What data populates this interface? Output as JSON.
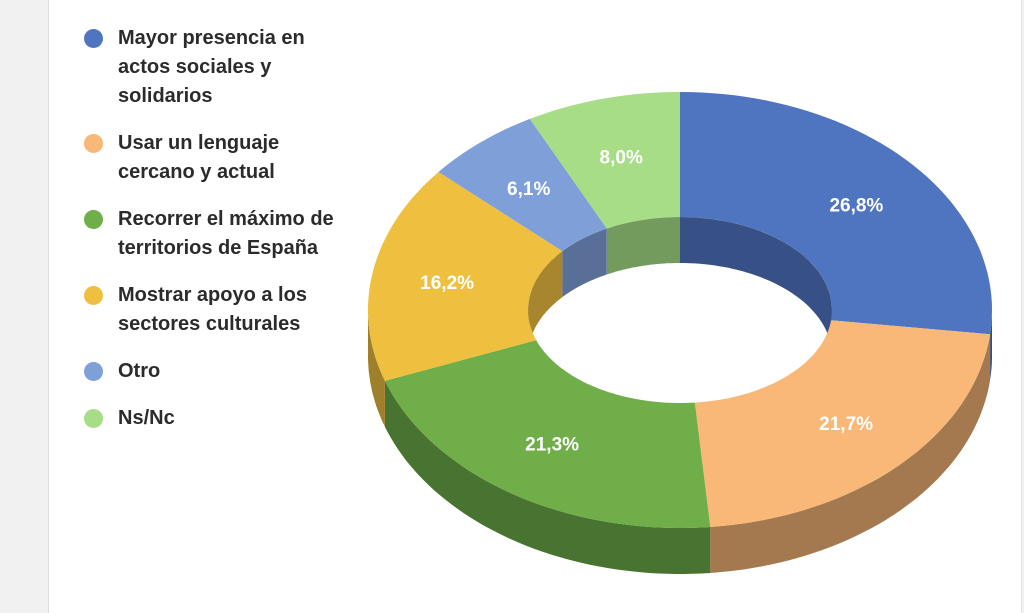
{
  "chart_data": {
    "type": "pie",
    "style": "3d-donut",
    "title": "",
    "categories": [
      "Mayor presencia en actos sociales y solidarios",
      "Usar un lenguaje cercano y actual",
      "Recorrer el máximo de territorios de España",
      "Mostrar apoyo a los sectores culturales",
      "Otro",
      "Ns/Nc"
    ],
    "values": [
      26.8,
      21.7,
      21.3,
      16.2,
      6.1,
      8.0
    ],
    "value_labels": [
      "26,8%",
      "21,7%",
      "21,3%",
      "16,2%",
      "6,1%",
      "8,0%"
    ],
    "colors": [
      "#4f74c0",
      "#f9b877",
      "#6fae48",
      "#efc040",
      "#7f9fd8",
      "#a6dd86"
    ],
    "legend_position": "left"
  },
  "legend": {
    "items": [
      {
        "lines": [
          "Mayor presencia en",
          "actos sociales y",
          "solidarios"
        ]
      },
      {
        "lines": [
          "Usar un lenguaje",
          "cercano y actual"
        ]
      },
      {
        "lines": [
          "Recorrer el máximo de",
          "territorios de España"
        ]
      },
      {
        "lines": [
          "Mostrar apoyo a los",
          "sectores culturales"
        ]
      },
      {
        "lines": [
          "Otro"
        ]
      },
      {
        "lines": [
          "Ns/Nc"
        ]
      }
    ]
  }
}
